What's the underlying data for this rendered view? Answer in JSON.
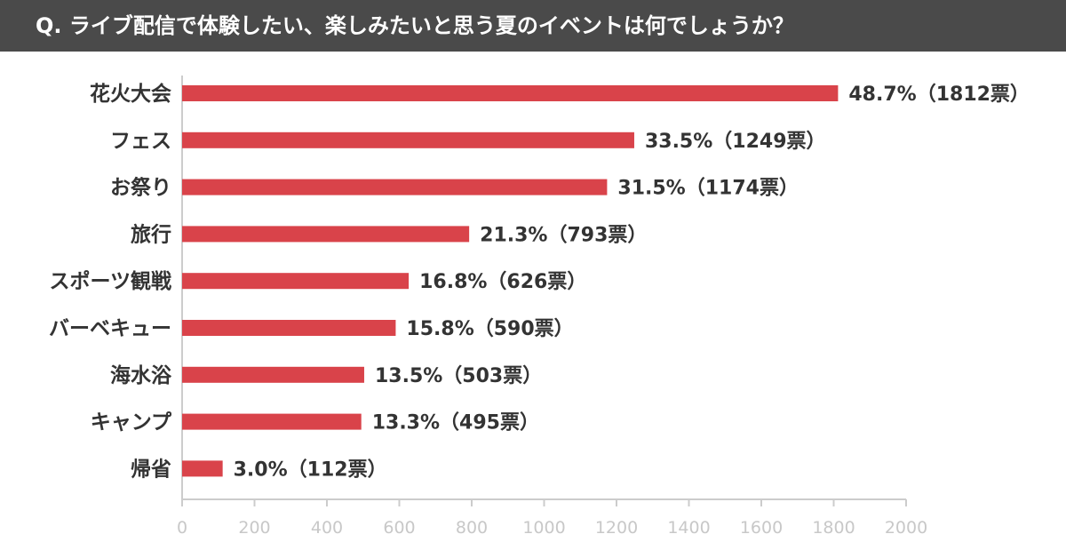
{
  "header": {
    "title": "Q. ライブ配信で体験したい、楽しみたいと思う夏のイベントは何でしょうか？"
  },
  "colors": {
    "bar": "#d9434a",
    "header_bg": "#4a4a4a",
    "axis": "#cccccc",
    "tick_text": "#c8c8c8",
    "label_text": "#333333"
  },
  "chart_data": {
    "type": "bar",
    "orientation": "horizontal",
    "title": "Q. ライブ配信で体験したい、楽しみたいと思う夏のイベントは何でしょうか？",
    "xlabel": "",
    "ylabel": "",
    "xlim": [
      0,
      2000
    ],
    "ticks": [
      0,
      200,
      400,
      600,
      800,
      1000,
      1200,
      1400,
      1600,
      1800,
      2000
    ],
    "grid": false,
    "categories": [
      "花火大会",
      "フェス",
      "お祭り",
      "旅行",
      "スポーツ観戦",
      "バーベキュー",
      "海水浴",
      "キャンプ",
      "帰省"
    ],
    "values": [
      1812,
      1249,
      1174,
      793,
      626,
      590,
      503,
      495,
      112
    ],
    "data_labels": [
      "48.7%（1812票）",
      "33.5%（1249票）",
      "31.5%（1174票）",
      "21.3%（793票）",
      "16.8%（626票）",
      "15.8%（590票）",
      "13.5%（503票）",
      "13.3%（495票）",
      "3.0%（112票）"
    ]
  }
}
